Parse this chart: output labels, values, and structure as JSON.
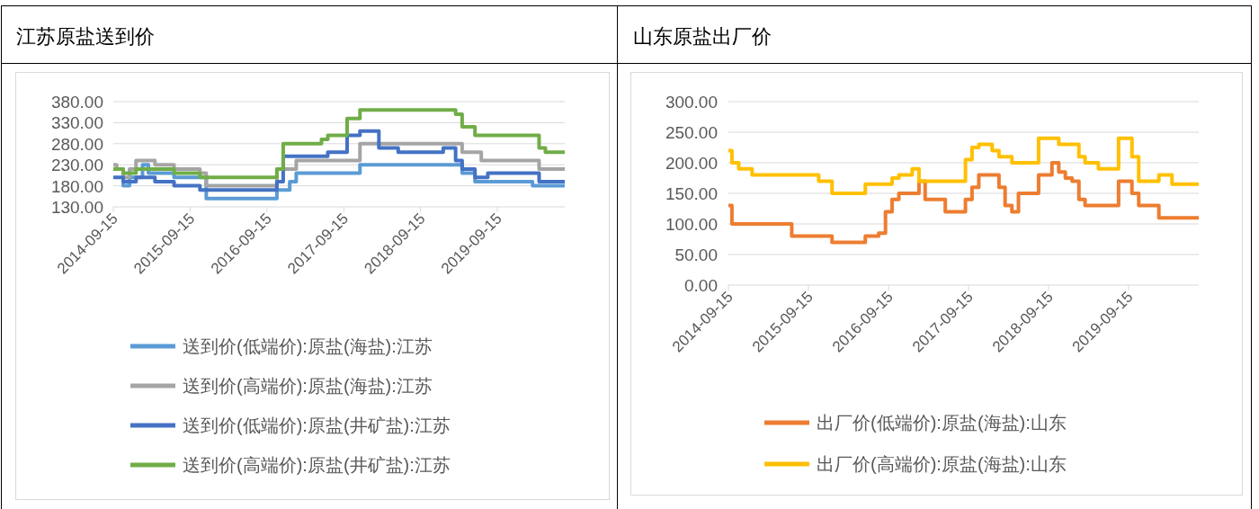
{
  "chart_data": [
    {
      "type": "step",
      "title": "江苏原盐送到价",
      "xlim": [
        "2014-09-15",
        "2020-08-01"
      ],
      "xticks": [
        "2014-09-15",
        "2015-09-15",
        "2016-09-15",
        "2017-09-15",
        "2018-09-15",
        "2019-09-15"
      ],
      "ylim": [
        130,
        380
      ],
      "yticks": [
        {
          "value": 130,
          "label": "130.00"
        },
        {
          "value": 180,
          "label": "180.00"
        },
        {
          "value": 230,
          "label": "230.00"
        },
        {
          "value": 280,
          "label": "280.00"
        },
        {
          "value": 330,
          "label": "330.00"
        },
        {
          "value": 380,
          "label": "380.00"
        }
      ],
      "grid": "y",
      "legend": "bottom",
      "series": [
        {
          "name": "送到价(低端价):原盐(海盐):江苏",
          "color": "#5b9bd5",
          "x": [
            "2014-09-15",
            "2014-11",
            "2014-12",
            "2015-02",
            "2015-03",
            "2015-07",
            "2015-12",
            "2016-11",
            "2017-01",
            "2017-02",
            "2017-12",
            "2019-04",
            "2019-06",
            "2020-03",
            "2020-08"
          ],
          "values": [
            220,
            180,
            200,
            230,
            210,
            200,
            150,
            170,
            190,
            210,
            230,
            210,
            190,
            180,
            180
          ]
        },
        {
          "name": "送到价(高端价):原盐(海盐):江苏",
          "color": "#a5a5a5",
          "x": [
            "2014-09-15",
            "2014-10",
            "2014-11",
            "2014-12",
            "2015-01",
            "2015-04",
            "2015-07",
            "2015-11",
            "2015-12",
            "2016-11",
            "2017-02",
            "2017-12",
            "2019-04",
            "2019-07",
            "2020-04",
            "2020-08"
          ],
          "values": [
            230,
            220,
            200,
            220,
            240,
            230,
            220,
            210,
            180,
            220,
            240,
            280,
            260,
            240,
            220,
            220
          ]
        },
        {
          "name": "送到价(低端价):原盐(井矿盐):江苏",
          "color": "#4472c4",
          "x": [
            "2014-09-15",
            "2014-11",
            "2015-01",
            "2015-04",
            "2015-07",
            "2015-11",
            "2016-11",
            "2016-12",
            "2017-07",
            "2017-10",
            "2017-12",
            "2018-03",
            "2018-06",
            "2019-01",
            "2019-03",
            "2019-04",
            "2019-06",
            "2019-08",
            "2020-04",
            "2020-08"
          ],
          "values": [
            200,
            190,
            200,
            190,
            180,
            170,
            190,
            250,
            260,
            300,
            310,
            270,
            260,
            270,
            240,
            220,
            200,
            210,
            190,
            190
          ]
        },
        {
          "name": "送到价(高端价):原盐(井矿盐):江苏",
          "color": "#70ad47",
          "x": [
            "2014-09-15",
            "2014-11",
            "2015-01",
            "2015-07",
            "2015-11",
            "2016-11",
            "2016-12",
            "2017-06",
            "2017-07",
            "2017-10",
            "2017-12",
            "2019-03",
            "2019-04",
            "2019-06",
            "2020-04",
            "2020-05",
            "2020-08"
          ],
          "values": [
            220,
            210,
            220,
            210,
            200,
            220,
            280,
            290,
            300,
            340,
            360,
            350,
            320,
            300,
            270,
            260,
            260
          ]
        }
      ]
    },
    {
      "type": "step",
      "title": "山东原盐出厂价",
      "xlim": [
        "2014-09-15",
        "2020-08-01"
      ],
      "xticks": [
        "2014-09-15",
        "2015-09-15",
        "2016-09-15",
        "2017-09-15",
        "2018-09-15",
        "2019-09-15"
      ],
      "ylim": [
        0,
        300
      ],
      "yticks": [
        {
          "value": 0,
          "label": "0.00"
        },
        {
          "value": 50,
          "label": "50.00"
        },
        {
          "value": 100,
          "label": "100.00"
        },
        {
          "value": 150,
          "label": "150.00"
        },
        {
          "value": 200,
          "label": "200.00"
        },
        {
          "value": 250,
          "label": "250.00"
        },
        {
          "value": 300,
          "label": "300.00"
        }
      ],
      "grid": "y",
      "legend": "bottom",
      "series": [
        {
          "name": "出厂价(低端价):原盐(海盐):山东",
          "color": "#ed7d31",
          "x": [
            "2014-09-15",
            "2014-10",
            "2015-07",
            "2016-01",
            "2016-06",
            "2016-08",
            "2016-09",
            "2016-10",
            "2016-11",
            "2017-02",
            "2017-03",
            "2017-06",
            "2017-09",
            "2017-10",
            "2017-11",
            "2018-02",
            "2018-03",
            "2018-04",
            "2018-05",
            "2018-08",
            "2018-10",
            "2018-11",
            "2018-12",
            "2019-01",
            "2019-02",
            "2019-03",
            "2019-08",
            "2019-10",
            "2019-11",
            "2020-02",
            "2020-08"
          ],
          "values": [
            130,
            100,
            80,
            70,
            80,
            85,
            120,
            140,
            150,
            170,
            140,
            120,
            140,
            160,
            180,
            160,
            130,
            120,
            150,
            180,
            200,
            185,
            175,
            170,
            140,
            130,
            170,
            150,
            130,
            110,
            110
          ]
        },
        {
          "name": "出厂价(高端价):原盐(海盐):山东",
          "color": "#ffc000",
          "x": [
            "2014-09-15",
            "2014-10",
            "2014-11",
            "2015-01",
            "2015-11",
            "2016-01",
            "2016-06",
            "2016-10",
            "2016-11",
            "2017-01",
            "2017-02",
            "2017-09",
            "2017-10",
            "2017-11",
            "2018-01",
            "2018-02",
            "2018-04",
            "2018-08",
            "2018-11",
            "2019-02",
            "2019-03",
            "2019-05",
            "2019-08",
            "2019-10",
            "2019-11",
            "2020-02",
            "2020-04",
            "2020-08"
          ],
          "values": [
            220,
            200,
            190,
            180,
            170,
            150,
            165,
            175,
            180,
            190,
            170,
            205,
            225,
            230,
            220,
            210,
            200,
            240,
            230,
            210,
            200,
            190,
            240,
            210,
            170,
            180,
            165,
            165
          ]
        }
      ]
    }
  ]
}
